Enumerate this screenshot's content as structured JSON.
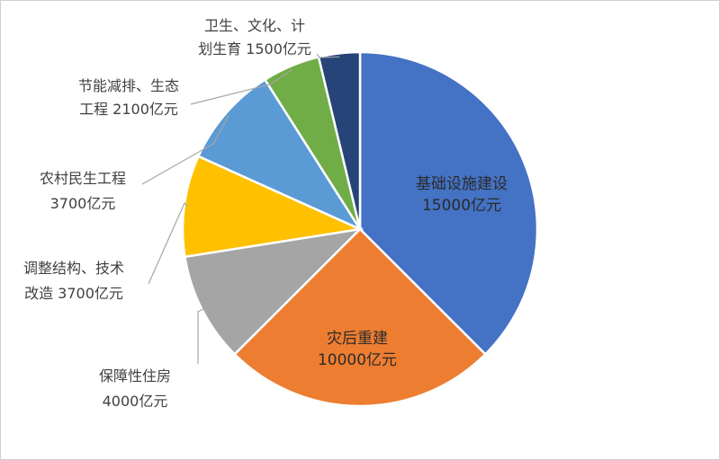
{
  "chart_data": {
    "type": "pie",
    "title": "",
    "start_angle_deg": 0,
    "direction": "clockwise",
    "slices": [
      {
        "name": "基础设施建设",
        "value": 15000,
        "label_lines": [
          "基础设施建设",
          "15000亿元"
        ],
        "color": "#4472C4",
        "label_pos": "inside"
      },
      {
        "name": "灾后重建",
        "value": 10000,
        "label_lines": [
          "灾后重建",
          "10000亿元"
        ],
        "color": "#ED7D31",
        "label_pos": "inside"
      },
      {
        "name": "保障性住房",
        "value": 4000,
        "label_lines": [
          "保障性住房",
          "4000亿元"
        ],
        "color": "#A5A5A5",
        "label_pos": "outside"
      },
      {
        "name": "调整结构、技术改造",
        "value": 3700,
        "label_lines": [
          "调整结构、技术",
          "改造 3700亿元"
        ],
        "color": "#FFC000",
        "label_pos": "outside"
      },
      {
        "name": "农村民生工程",
        "value": 3700,
        "label_lines": [
          "农村民生工程",
          "3700亿元"
        ],
        "color": "#5B9BD5",
        "label_pos": "outside"
      },
      {
        "name": "节能减排、生态工程",
        "value": 2100,
        "label_lines": [
          "节能减排、生态",
          "工程 2100亿元"
        ],
        "color": "#70AD47",
        "label_pos": "outside"
      },
      {
        "name": "卫生、文化、计划生育",
        "value": 1500,
        "label_lines": [
          "卫生、文化、计",
          "划生育 1500亿元"
        ],
        "color": "#264478",
        "label_pos": "outside"
      }
    ]
  }
}
